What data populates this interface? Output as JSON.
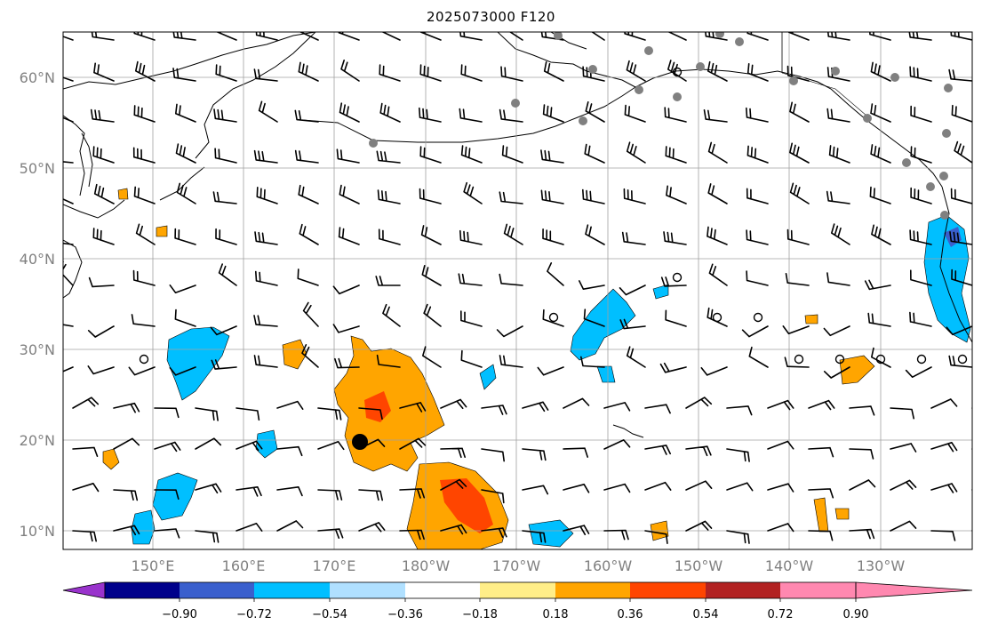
{
  "title": "2025073000 F120",
  "lat_labels": [
    "60°N",
    "50°N",
    "40°N",
    "30°N",
    "20°N",
    "10°N"
  ],
  "lon_labels": [
    "150°E",
    "160°E",
    "170°E",
    "180°W",
    "170°W",
    "160°W",
    "150°W",
    "140°W",
    "130°W"
  ],
  "colorbar": {
    "colors": [
      "#9933cc",
      "#00008b",
      "#3a5fcd",
      "#00bfff",
      "#b0e0ff",
      "#ffffff",
      "#ffee88",
      "#ffa500",
      "#ff4500",
      "#b22222",
      "#ff88b0"
    ],
    "tick_labels": [
      "−0.90",
      "−0.72",
      "−0.54",
      "−0.36",
      "−0.18",
      "0.18",
      "0.36",
      "0.54",
      "0.72",
      "0.90"
    ]
  },
  "legend_colors": {
    "coast": "#000000",
    "station": "#808080",
    "grid": "#a0a0a0"
  }
}
